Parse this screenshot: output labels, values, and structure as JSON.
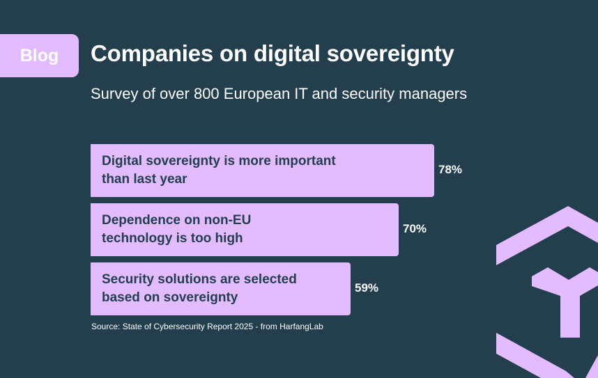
{
  "tag": "Blog",
  "title": "Companies on digital sovereignty",
  "subtitle": "Survey of over 800 European IT and security managers",
  "source": "Source: State of Cybersecurity Report 2025 - from HarfangLab",
  "colors": {
    "background": "#233f4e",
    "accent": "#e3bcff",
    "text": "#ffffff"
  },
  "icons": {
    "logo": "harfanglab-hexagon-logo"
  },
  "chart_data": {
    "type": "bar",
    "orientation": "horizontal",
    "categories": [
      [
        "Digital sovereignty is more important",
        "than last year"
      ],
      [
        "Dependence on non-EU",
        "technology is too high"
      ],
      [
        "Security solutions are selected",
        "based on sovereignty"
      ]
    ],
    "values": [
      78,
      70,
      59
    ],
    "value_labels": [
      "78%",
      "70%",
      "59%"
    ],
    "unit": "%",
    "grid": false
  }
}
